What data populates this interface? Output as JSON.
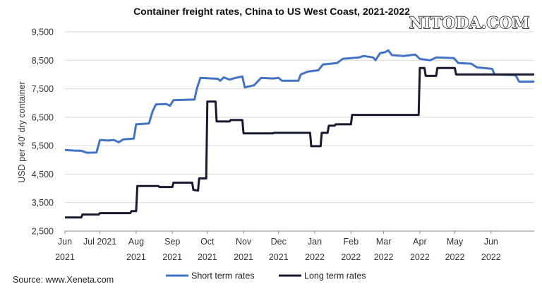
{
  "watermark": "NITODA.COM",
  "source": "Source: www.Xeneta.com",
  "chart_data": {
    "type": "line",
    "title": "Container freight rates, China to US West Coast, 2021-2022",
    "ylabel": "USD per 40' dry container",
    "xlabel": "",
    "ylim": [
      2500,
      9500
    ],
    "xlim": [
      "2021-06-01",
      "2022-07-08"
    ],
    "yticks": [
      2500,
      3500,
      4500,
      5500,
      6500,
      7500,
      8500,
      9500
    ],
    "ytick_labels": [
      "2,500",
      "3,500",
      "4,500",
      "5,500",
      "6,500",
      "7,500",
      "8,500",
      "9,500"
    ],
    "xticks": [
      {
        "date": "2021-06-01",
        "line1": "Jun",
        "line2": "2021"
      },
      {
        "date": "2021-07-01",
        "line1": "Jul 2021",
        "line2": ""
      },
      {
        "date": "2021-08-01",
        "line1": "Aug",
        "line2": "2021"
      },
      {
        "date": "2021-09-01",
        "line1": "Sep",
        "line2": "2021"
      },
      {
        "date": "2021-10-01",
        "line1": "Oct",
        "line2": "2021"
      },
      {
        "date": "2021-11-01",
        "line1": "Nov",
        "line2": "2021"
      },
      {
        "date": "2021-12-01",
        "line1": "Dec",
        "line2": "2021"
      },
      {
        "date": "2022-01-01",
        "line1": "Jan",
        "line2": "2022"
      },
      {
        "date": "2022-02-01",
        "line1": "Feb",
        "line2": "2022"
      },
      {
        "date": "2022-03-01",
        "line1": "Mar",
        "line2": "2022"
      },
      {
        "date": "2022-04-01",
        "line1": "Apr",
        "line2": "2022"
      },
      {
        "date": "2022-05-01",
        "line1": "May",
        "line2": "2022"
      },
      {
        "date": "2022-06-01",
        "line1": "Jun",
        "line2": "2022"
      }
    ],
    "grid": "horizontal",
    "legend_position": "bottom",
    "series": [
      {
        "name": "Short term rates",
        "color": "#4472c4",
        "points": [
          [
            "2021-06-01",
            5350
          ],
          [
            "2021-06-08",
            5330
          ],
          [
            "2021-06-15",
            5320
          ],
          [
            "2021-06-20",
            5250
          ],
          [
            "2021-06-28",
            5260
          ],
          [
            "2021-07-01",
            5700
          ],
          [
            "2021-07-08",
            5680
          ],
          [
            "2021-07-13",
            5700
          ],
          [
            "2021-07-17",
            5620
          ],
          [
            "2021-07-21",
            5720
          ],
          [
            "2021-07-30",
            5750
          ],
          [
            "2021-08-01",
            6250
          ],
          [
            "2021-08-12",
            6280
          ],
          [
            "2021-08-15",
            6700
          ],
          [
            "2021-08-18",
            6950
          ],
          [
            "2021-08-27",
            6960
          ],
          [
            "2021-08-30",
            6900
          ],
          [
            "2021-09-02",
            7100
          ],
          [
            "2021-09-20",
            7120
          ],
          [
            "2021-09-22",
            7500
          ],
          [
            "2021-09-25",
            7880
          ],
          [
            "2021-10-10",
            7850
          ],
          [
            "2021-10-12",
            7780
          ],
          [
            "2021-10-15",
            7900
          ],
          [
            "2021-10-20",
            7820
          ],
          [
            "2021-10-25",
            7880
          ],
          [
            "2021-10-31",
            7930
          ],
          [
            "2021-11-02",
            7550
          ],
          [
            "2021-11-10",
            7620
          ],
          [
            "2021-11-16",
            7880
          ],
          [
            "2021-11-26",
            7860
          ],
          [
            "2021-12-01",
            7880
          ],
          [
            "2021-12-04",
            7780
          ],
          [
            "2021-12-18",
            7780
          ],
          [
            "2021-12-20",
            8000
          ],
          [
            "2021-12-26",
            8100
          ],
          [
            "2022-01-04",
            8150
          ],
          [
            "2022-01-08",
            8350
          ],
          [
            "2022-01-20",
            8400
          ],
          [
            "2022-01-25",
            8550
          ],
          [
            "2022-02-08",
            8600
          ],
          [
            "2022-02-12",
            8650
          ],
          [
            "2022-02-20",
            8600
          ],
          [
            "2022-02-22",
            8500
          ],
          [
            "2022-02-26",
            8750
          ],
          [
            "2022-03-02",
            8780
          ],
          [
            "2022-03-05",
            8850
          ],
          [
            "2022-03-08",
            8680
          ],
          [
            "2022-03-18",
            8650
          ],
          [
            "2022-03-28",
            8700
          ],
          [
            "2022-04-01",
            8550
          ],
          [
            "2022-04-10",
            8500
          ],
          [
            "2022-04-15",
            8600
          ],
          [
            "2022-04-30",
            8580
          ],
          [
            "2022-05-04",
            8400
          ],
          [
            "2022-05-15",
            8380
          ],
          [
            "2022-05-20",
            8250
          ],
          [
            "2022-06-02",
            8200
          ],
          [
            "2022-06-04",
            8000
          ],
          [
            "2022-06-22",
            7980
          ],
          [
            "2022-06-25",
            7750
          ],
          [
            "2022-07-08",
            7750
          ]
        ]
      },
      {
        "name": "Long term rates",
        "color": "#1a1a2e",
        "points": [
          [
            "2021-06-01",
            2980
          ],
          [
            "2021-06-15",
            2980
          ],
          [
            "2021-06-16",
            3080
          ],
          [
            "2021-06-30",
            3080
          ],
          [
            "2021-07-01",
            3130
          ],
          [
            "2021-07-27",
            3130
          ],
          [
            "2021-07-28",
            3200
          ],
          [
            "2021-08-01",
            3200
          ],
          [
            "2021-08-02",
            4080
          ],
          [
            "2021-08-20",
            4080
          ],
          [
            "2021-08-21",
            4050
          ],
          [
            "2021-09-01",
            4050
          ],
          [
            "2021-09-02",
            4200
          ],
          [
            "2021-09-18",
            4200
          ],
          [
            "2021-09-19",
            3950
          ],
          [
            "2021-09-23",
            3920
          ],
          [
            "2021-09-24",
            4350
          ],
          [
            "2021-09-30",
            4350
          ],
          [
            "2021-10-01",
            7050
          ],
          [
            "2021-10-08",
            7050
          ],
          [
            "2021-10-09",
            6350
          ],
          [
            "2021-10-20",
            6350
          ],
          [
            "2021-10-21",
            6400
          ],
          [
            "2021-10-31",
            6400
          ],
          [
            "2021-11-01",
            5930
          ],
          [
            "2021-11-26",
            5930
          ],
          [
            "2021-11-27",
            5950
          ],
          [
            "2021-12-28",
            5950
          ],
          [
            "2021-12-29",
            5480
          ],
          [
            "2022-01-06",
            5480
          ],
          [
            "2022-01-07",
            5950
          ],
          [
            "2022-01-12",
            5950
          ],
          [
            "2022-01-13",
            6200
          ],
          [
            "2022-01-18",
            6200
          ],
          [
            "2022-01-19",
            6250
          ],
          [
            "2022-02-01",
            6250
          ],
          [
            "2022-02-02",
            6580
          ],
          [
            "2022-03-31",
            6580
          ],
          [
            "2022-04-01",
            8230
          ],
          [
            "2022-04-05",
            8230
          ],
          [
            "2022-04-06",
            7950
          ],
          [
            "2022-04-15",
            7950
          ],
          [
            "2022-04-16",
            8230
          ],
          [
            "2022-05-01",
            8230
          ],
          [
            "2022-05-02",
            8000
          ],
          [
            "2022-07-08",
            8000
          ]
        ]
      }
    ]
  }
}
